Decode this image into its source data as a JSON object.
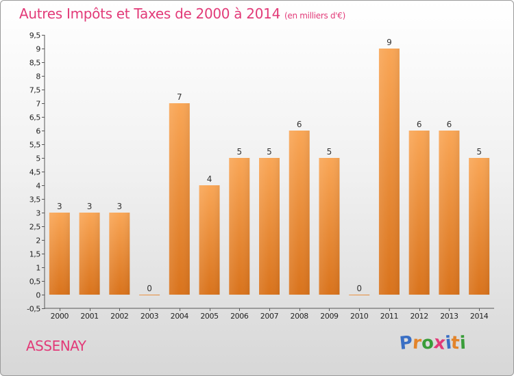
{
  "header": {
    "title": "Autres Impôts et Taxes de 2000 à 2014",
    "unit": "(en milliers d'€)"
  },
  "footer": {
    "commune": "ASSENAY",
    "brand": "Proxiti"
  },
  "colors": {
    "title": "#e23a78",
    "bar_top": "#f9a656",
    "bar_bottom": "#d9731c",
    "brand_letters": [
      "#3a6fc4",
      "#e3842a",
      "#3a9d3a",
      "#e23a78",
      "#3a6fc4",
      "#e3842a",
      "#3a9d3a"
    ]
  },
  "chart_data": {
    "type": "bar",
    "title": "Autres Impôts et Taxes de 2000 à 2014",
    "subtitle": "(en milliers d'€)",
    "xlabel": "",
    "ylabel": "",
    "categories": [
      "2000",
      "2001",
      "2002",
      "2003",
      "2004",
      "2005",
      "2006",
      "2007",
      "2008",
      "2009",
      "2010",
      "2011",
      "2012",
      "2013",
      "2014"
    ],
    "values": [
      3,
      3,
      3,
      0,
      7,
      4,
      5,
      5,
      6,
      5,
      0,
      9,
      6,
      6,
      5
    ],
    "ylim": [
      -0.5,
      9.5
    ],
    "yticks": [
      "-0,5",
      "0",
      "0,5",
      "1",
      "1,5",
      "2",
      "2,5",
      "3",
      "3,5",
      "4",
      "4,5",
      "5",
      "5,5",
      "6",
      "6,5",
      "7",
      "7,5",
      "8",
      "8,5",
      "9",
      "9,5"
    ],
    "ytick_values": [
      -0.5,
      0,
      0.5,
      1,
      1.5,
      2,
      2.5,
      3,
      3.5,
      4,
      4.5,
      5,
      5.5,
      6,
      6.5,
      7,
      7.5,
      8,
      8.5,
      9,
      9.5
    ],
    "grid": false,
    "legend": "none"
  }
}
